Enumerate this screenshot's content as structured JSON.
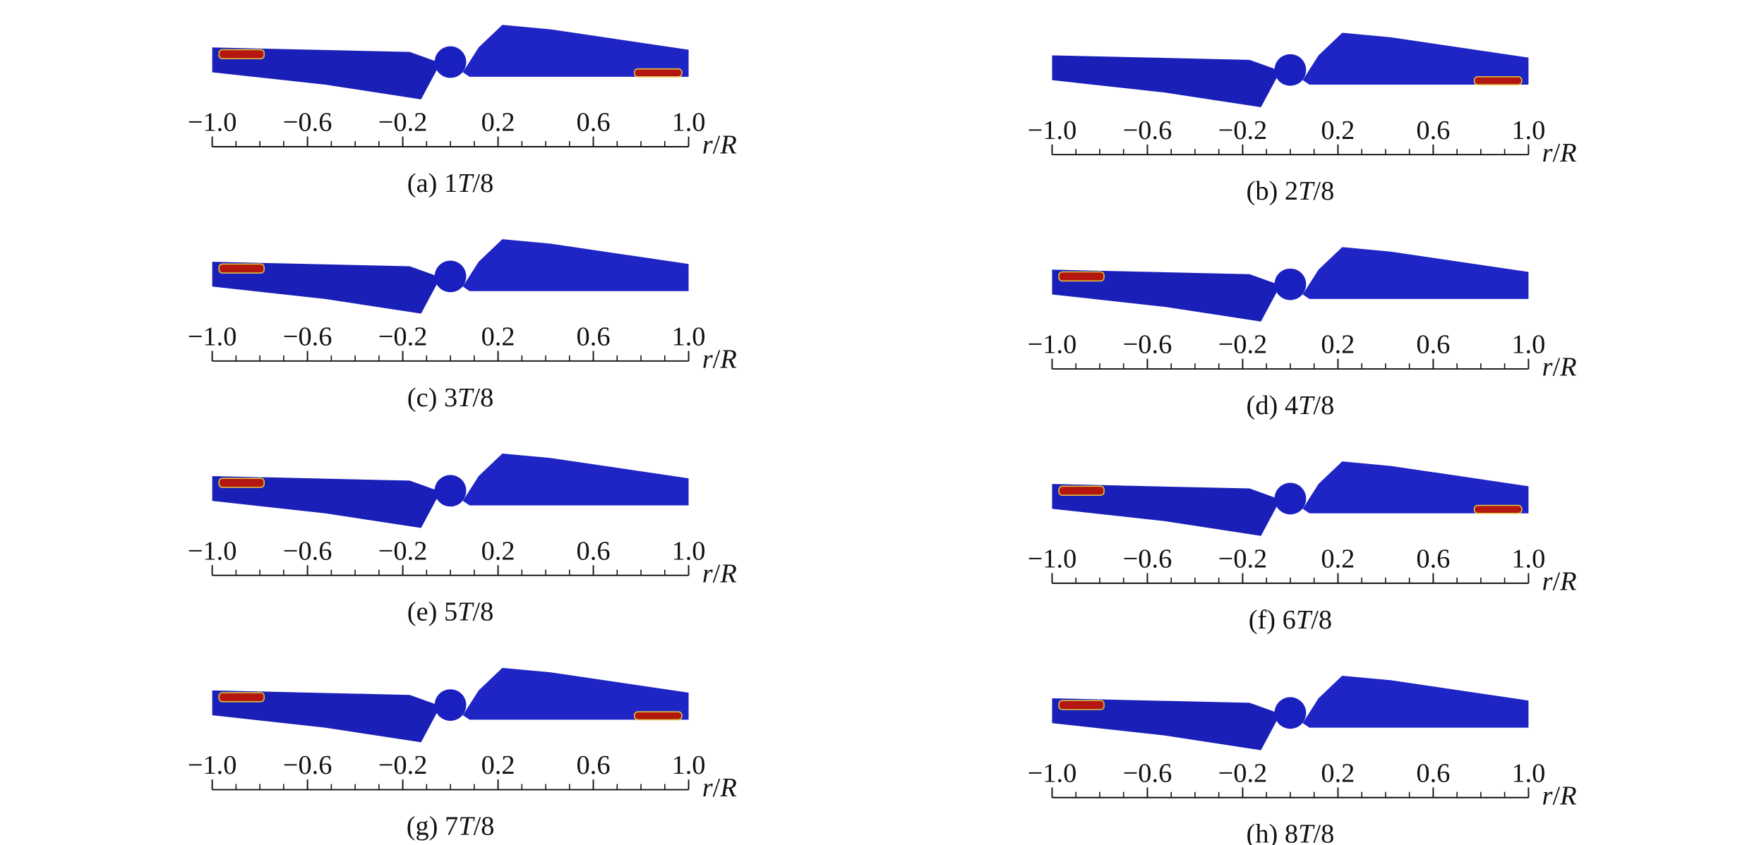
{
  "axis": {
    "xlim": [
      -1,
      1
    ],
    "xticks": [
      {
        "value": -1,
        "label": "−1.0"
      },
      {
        "value": -0.6,
        "label": "−0.6"
      },
      {
        "value": -0.2,
        "label": "−0.2"
      },
      {
        "value": 0.2,
        "label": "0.2"
      },
      {
        "value": 0.6,
        "label": "0.6"
      },
      {
        "value": 1,
        "label": "1.0"
      }
    ],
    "label": [
      "r",
      "/",
      "R"
    ]
  },
  "panels": [
    {
      "caption": [
        "(a) 1",
        "T",
        "/8"
      ]
    },
    {
      "caption": [
        "(b) 2",
        "T",
        "/8"
      ]
    },
    {
      "caption": [
        "(c) 3",
        "T",
        "/8"
      ]
    },
    {
      "caption": [
        "(d) 4",
        "T",
        "/8"
      ]
    },
    {
      "caption": [
        "(e) 5",
        "T",
        "/8"
      ]
    },
    {
      "caption": [
        "(f) 6",
        "T",
        "/8"
      ]
    },
    {
      "caption": [
        "(g) 7",
        "T",
        "/8"
      ]
    },
    {
      "caption": [
        "(h) 8",
        "T",
        "/8"
      ]
    }
  ]
}
